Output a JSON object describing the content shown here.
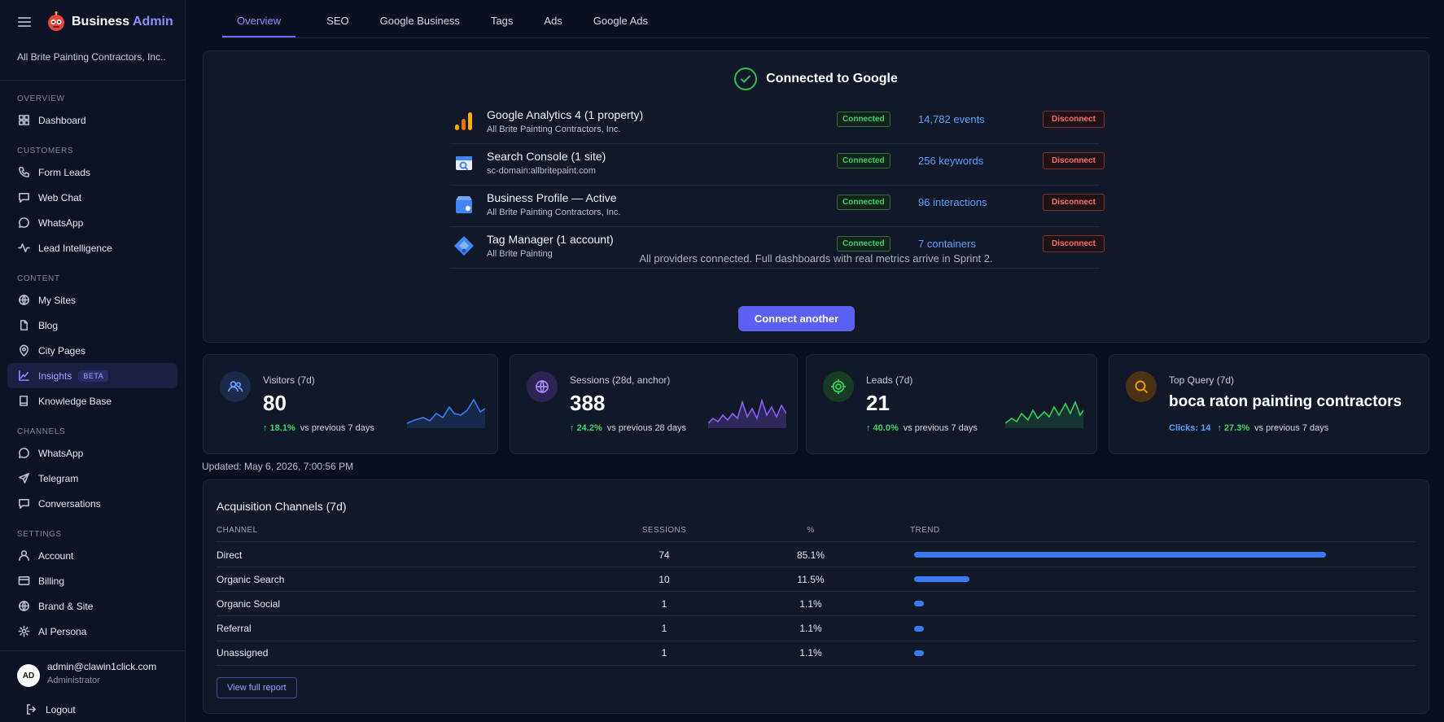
{
  "brand": {
    "name_first": "Business",
    "name_second": "Admin"
  },
  "sidebar": {
    "org": "All Brite Painting Contractors, Inc..",
    "sections": {
      "overview": "OVERVIEW",
      "customers": "CUSTOMERS",
      "content": "CONTENT",
      "channels": "CHANNELS",
      "settings": "SETTINGS"
    },
    "items": {
      "dashboard": "Dashboard",
      "form_leads": "Form Leads",
      "web_chat": "Web Chat",
      "whatsapp": "WhatsApp",
      "lead_intelligence": "Lead Intelligence",
      "my_sites": "My Sites",
      "blog": "Blog",
      "city_pages": "City Pages",
      "insights": "Insights",
      "insights_badge": "BETA",
      "knowledge_base": "Knowledge Base",
      "whatsapp_channel": "WhatsApp",
      "telegram": "Telegram",
      "conversations": "Conversations",
      "account": "Account",
      "billing": "Billing",
      "brand_site": "Brand & Site",
      "ai_persona": "AI Persona"
    },
    "user": {
      "initials": "AD",
      "email": "admin@clawin1click.com",
      "role": "Administrator"
    },
    "logout": "Logout"
  },
  "tabs": [
    "Overview",
    "SEO",
    "Google Business",
    "Tags",
    "Ads",
    "Google Ads"
  ],
  "connection": {
    "title": "Connected to Google",
    "providers": [
      {
        "name": "Google Analytics 4 (1 property)",
        "sub": "All Brite Painting Contractors, Inc.",
        "status": "Connected",
        "metric": "14,782 events",
        "action": "Disconnect"
      },
      {
        "name": "Search Console (1 site)",
        "sub": "sc-domain:allbritepaint.com",
        "status": "Connected",
        "metric": "256 keywords",
        "action": "Disconnect"
      },
      {
        "name": "Business Profile — Active",
        "sub": "All Brite Painting Contractors, Inc.",
        "status": "Connected",
        "metric": "96 interactions",
        "action": "Disconnect"
      },
      {
        "name": "Tag Manager (1 account)",
        "sub": "All Brite Painting",
        "status": "Connected",
        "metric": "7 containers",
        "action": "Disconnect"
      }
    ],
    "note": "All providers connected. Full dashboards with real metrics arrive in Sprint 2.",
    "connect_button": "Connect another"
  },
  "stats": [
    {
      "label": "Visitors (7d)",
      "value": "80",
      "change": "↑ 18.1%",
      "compare": "vs previous 7 days",
      "color": "#3a7bf5"
    },
    {
      "label": "Sessions (28d, anchor)",
      "value": "388",
      "change": "↑ 24.2%",
      "compare": "vs previous 28 days",
      "color": "#8b5cf6"
    },
    {
      "label": "Leads (7d)",
      "value": "21",
      "change": "↑ 40.0%",
      "compare": "vs previous 7 days",
      "color": "#34d05f"
    },
    {
      "label": "Top Query (7d)",
      "value": "boca raton painting contractors",
      "clicks": "Clicks: 14",
      "change": "↑ 27.3%",
      "compare": "vs previous 7 days",
      "color": "#f59e0b"
    }
  ],
  "updated": "Updated: May 6, 2026, 7:00:56 PM",
  "acquisition": {
    "title": "Acquisition Channels (7d)",
    "headers": {
      "channel": "CHANNEL",
      "sessions": "SESSIONS",
      "percent": "%",
      "trend": "TREND"
    },
    "rows": [
      {
        "channel": "Direct",
        "sessions": "74",
        "percent": "85.1%",
        "share": 1.0
      },
      {
        "channel": "Organic Search",
        "sessions": "10",
        "percent": "11.5%",
        "share": 0.135
      },
      {
        "channel": "Organic Social",
        "sessions": "1",
        "percent": "1.1%",
        "share": 0.013
      },
      {
        "channel": "Referral",
        "sessions": "1",
        "percent": "1.1%",
        "share": 0.013
      },
      {
        "channel": "Unassigned",
        "sessions": "1",
        "percent": "1.1%",
        "share": 0.013
      }
    ],
    "view_button": "View full report"
  },
  "colors": {
    "accent": "#5b5ff2",
    "success": "#39d06a",
    "danger": "#ff6b6b",
    "link": "#5aa0ff"
  }
}
